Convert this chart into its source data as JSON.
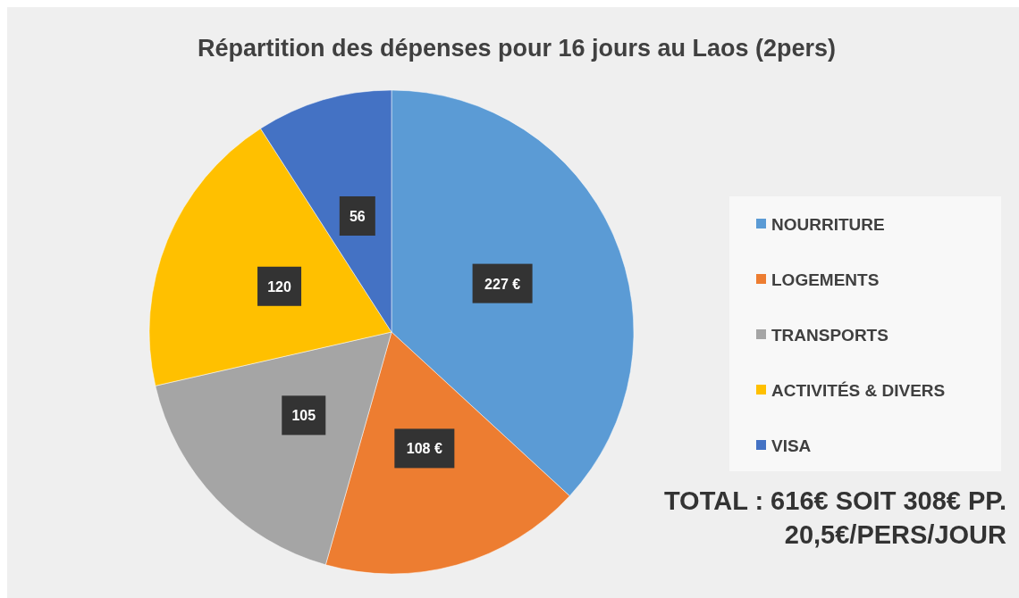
{
  "chart_data": {
    "type": "pie",
    "title": "Répartition des dépenses pour 16 jours au Laos (2pers)",
    "categories": [
      "NOURRITURE",
      "LOGEMENTS",
      "TRANSPORTS",
      "ACTIVITÉS & DIVERS",
      "VISA"
    ],
    "values": [
      227,
      108,
      105,
      120,
      56
    ],
    "value_labels": [
      "227 €",
      "108 €",
      "105",
      "120",
      "56"
    ],
    "colors": [
      "#5b9bd5",
      "#ed7d31",
      "#a5a5a5",
      "#ffc000",
      "#4472c4"
    ],
    "legend": "right",
    "annotations": [
      "TOTAL : 616€ SOIT 308€ PP.",
      "20,5€/PERS/JOUR"
    ]
  }
}
